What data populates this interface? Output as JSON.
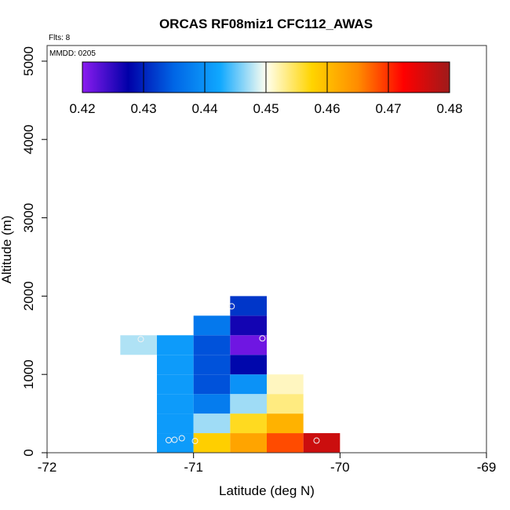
{
  "chart_data": {
    "type": "heatmap",
    "title": "ORCAS RF08miz1 CFC112_AWAS",
    "xlabel": "Latitude (deg N)",
    "ylabel": "Altitude (m)",
    "xlim": [
      -72,
      -69
    ],
    "ylim": [
      0,
      5200
    ],
    "x_ticks": [
      -72,
      -71,
      -70,
      -69
    ],
    "y_ticks": [
      0,
      1000,
      2000,
      3000,
      4000,
      5000
    ],
    "notes": [
      "Flts: 8",
      "MMDD: 0205"
    ],
    "colorbar": {
      "min": 0.42,
      "max": 0.48,
      "ticks": [
        "0.42",
        "0.43",
        "0.44",
        "0.45",
        "0.46",
        "0.47",
        "0.48"
      ],
      "stops": [
        "#8b1cf0",
        "#0000a8",
        "#0066e6",
        "#10a8ff",
        "#fffff0",
        "#ffd400",
        "#ff8c00",
        "#ff0000",
        "#9e1b1b"
      ]
    },
    "cells": [
      {
        "lat": -71.375,
        "alt": 1375,
        "value": 0.4475
      },
      {
        "lat": -71.125,
        "alt": 125,
        "value": 0.441
      },
      {
        "lat": -71.125,
        "alt": 375,
        "value": 0.441
      },
      {
        "lat": -71.125,
        "alt": 625,
        "value": 0.441
      },
      {
        "lat": -71.125,
        "alt": 875,
        "value": 0.441
      },
      {
        "lat": -71.125,
        "alt": 1125,
        "value": 0.441
      },
      {
        "lat": -71.125,
        "alt": 1375,
        "value": 0.441
      },
      {
        "lat": -70.875,
        "alt": 125,
        "value": 0.458
      },
      {
        "lat": -70.875,
        "alt": 375,
        "value": 0.447
      },
      {
        "lat": -70.875,
        "alt": 625,
        "value": 0.4375
      },
      {
        "lat": -70.875,
        "alt": 875,
        "value": 0.4335
      },
      {
        "lat": -70.875,
        "alt": 1125,
        "value": 0.4335
      },
      {
        "lat": -70.875,
        "alt": 1375,
        "value": 0.4335
      },
      {
        "lat": -70.875,
        "alt": 1625,
        "value": 0.437
      },
      {
        "lat": -70.625,
        "alt": 125,
        "value": 0.4625
      },
      {
        "lat": -70.625,
        "alt": 375,
        "value": 0.4565
      },
      {
        "lat": -70.625,
        "alt": 625,
        "value": 0.447
      },
      {
        "lat": -70.625,
        "alt": 875,
        "value": 0.44
      },
      {
        "lat": -70.625,
        "alt": 1125,
        "value": 0.428
      },
      {
        "lat": -70.625,
        "alt": 1375,
        "value": 0.4215
      },
      {
        "lat": -70.625,
        "alt": 1625,
        "value": 0.4265
      },
      {
        "lat": -70.625,
        "alt": 1875,
        "value": 0.4315
      },
      {
        "lat": -70.375,
        "alt": 125,
        "value": 0.4685
      },
      {
        "lat": -70.375,
        "alt": 375,
        "value": 0.461
      },
      {
        "lat": -70.375,
        "alt": 625,
        "value": 0.4535
      },
      {
        "lat": -70.375,
        "alt": 875,
        "value": 0.4515
      },
      {
        "lat": -70.125,
        "alt": 125,
        "value": 0.4765
      }
    ],
    "points": [
      {
        "lat": -71.36,
        "alt": 1450
      },
      {
        "lat": -71.17,
        "alt": 160
      },
      {
        "lat": -71.13,
        "alt": 165
      },
      {
        "lat": -71.08,
        "alt": 185
      },
      {
        "lat": -70.99,
        "alt": 150
      },
      {
        "lat": -70.74,
        "alt": 1870
      },
      {
        "lat": -70.53,
        "alt": 1460
      },
      {
        "lat": -70.16,
        "alt": 155
      }
    ]
  }
}
